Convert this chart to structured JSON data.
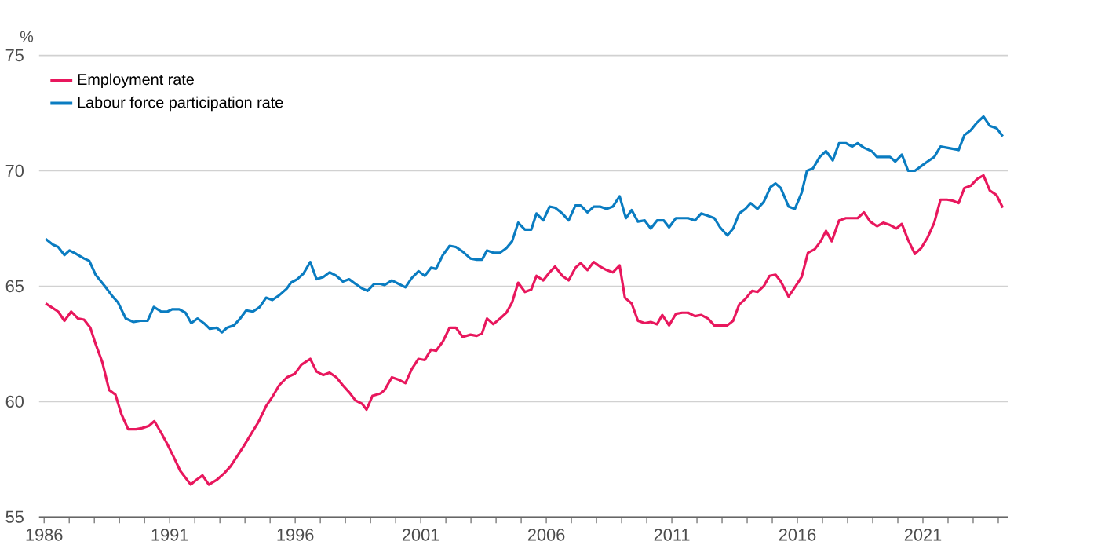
{
  "chart_data": {
    "type": "line",
    "ylabel": "%",
    "xlim": [
      1985.8,
      2024.4
    ],
    "ylim": [
      55,
      75
    ],
    "yticks": [
      55,
      60,
      65,
      70,
      75
    ],
    "xticks": [
      1986,
      {
        "value": 1987,
        "label": null
      },
      {
        "value": 1988,
        "label": null
      },
      {
        "value": 1989,
        "label": null
      },
      {
        "value": 1990,
        "label": null
      },
      1991,
      {
        "value": 1992,
        "label": null
      },
      {
        "value": 1993,
        "label": null
      },
      {
        "value": 1994,
        "label": null
      },
      {
        "value": 1995,
        "label": null
      },
      1996,
      {
        "value": 1997,
        "label": null
      },
      {
        "value": 1998,
        "label": null
      },
      {
        "value": 1999,
        "label": null
      },
      {
        "value": 2000,
        "label": null
      },
      2001,
      {
        "value": 2002,
        "label": null
      },
      {
        "value": 2003,
        "label": null
      },
      {
        "value": 2004,
        "label": null
      },
      {
        "value": 2005,
        "label": null
      },
      2006,
      {
        "value": 2007,
        "label": null
      },
      {
        "value": 2008,
        "label": null
      },
      {
        "value": 2009,
        "label": null
      },
      {
        "value": 2010,
        "label": null
      },
      2011,
      {
        "value": 2012,
        "label": null
      },
      {
        "value": 2013,
        "label": null
      },
      {
        "value": 2014,
        "label": null
      },
      {
        "value": 2015,
        "label": null
      },
      2016,
      {
        "value": 2017,
        "label": null
      },
      {
        "value": 2018,
        "label": null
      },
      {
        "value": 2019,
        "label": null
      },
      {
        "value": 2020,
        "label": null
      },
      2021,
      {
        "value": 2022,
        "label": null
      },
      {
        "value": 2023,
        "label": null
      },
      {
        "value": 2024,
        "label": null
      }
    ],
    "grid": "y",
    "legend": "top left",
    "series": [
      {
        "name": "Employment rate",
        "color": "#e8175d",
        "x": [
          1986.06,
          1986.35,
          1986.56,
          1986.81,
          1987.08,
          1987.35,
          1987.59,
          1987.84,
          1988.05,
          1988.32,
          1988.59,
          1988.84,
          1989.08,
          1989.35,
          1989.66,
          1989.91,
          1990.18,
          1990.39,
          1990.66,
          1990.91,
          1991.16,
          1991.42,
          1991.84,
          1992.05,
          1992.31,
          1992.56,
          1992.87,
          1993.18,
          1993.43,
          1993.7,
          1993.97,
          1994.22,
          1994.53,
          1994.84,
          1995.09,
          1995.36,
          1995.67,
          1995.98,
          1996.25,
          1996.6,
          1996.85,
          1997.12,
          1997.37,
          1997.64,
          1997.9,
          1998.15,
          1998.4,
          1998.67,
          1998.84,
          1999.08,
          1999.4,
          1999.56,
          1999.85,
          2000.12,
          2000.39,
          2000.64,
          2000.91,
          2001.16,
          2001.41,
          2001.61,
          2001.88,
          2002.15,
          2002.4,
          2002.67,
          2002.98,
          2003.23,
          2003.44,
          2003.64,
          2003.89,
          2004.16,
          2004.41,
          2004.64,
          2004.88,
          2005.15,
          2005.4,
          2005.61,
          2005.88,
          2006.13,
          2006.35,
          2006.64,
          2006.89,
          2007.16,
          2007.37,
          2007.64,
          2007.89,
          2008.14,
          2008.4,
          2008.65,
          2008.92,
          2009.13,
          2009.4,
          2009.65,
          2009.92,
          2010.16,
          2010.41,
          2010.62,
          2010.89,
          2011.16,
          2011.41,
          2011.65,
          2011.92,
          2012.17,
          2012.44,
          2012.69,
          2012.96,
          2013.21,
          2013.44,
          2013.68,
          2013.93,
          2014.2,
          2014.41,
          2014.66,
          2014.89,
          2015.13,
          2015.34,
          2015.65,
          2015.9,
          2016.17,
          2016.42,
          2016.69,
          2016.93,
          2017.14,
          2017.37,
          2017.66,
          2017.93,
          2018.18,
          2018.4,
          2018.65,
          2018.9,
          2019.17,
          2019.42,
          2019.69,
          2019.94,
          2020.16,
          2020.41,
          2020.68,
          2020.93,
          2021.18,
          2021.45,
          2021.7,
          2021.96,
          2022.21,
          2022.42,
          2022.65,
          2022.9,
          2023.16,
          2023.41,
          2023.66,
          2023.93,
          2024.18
        ],
        "values": [
          64.25,
          64.05,
          63.9,
          63.5,
          63.9,
          63.6,
          63.55,
          63.2,
          62.5,
          61.7,
          60.5,
          60.3,
          59.45,
          58.8,
          58.8,
          58.85,
          58.95,
          59.15,
          58.65,
          58.15,
          57.6,
          57.0,
          56.4,
          56.6,
          56.8,
          56.4,
          56.6,
          56.9,
          57.2,
          57.65,
          58.1,
          58.55,
          59.1,
          59.8,
          60.2,
          60.7,
          61.05,
          61.2,
          61.6,
          61.85,
          61.3,
          61.15,
          61.25,
          61.05,
          60.7,
          60.4,
          60.05,
          59.9,
          59.65,
          60.25,
          60.35,
          60.5,
          61.05,
          60.95,
          60.8,
          61.4,
          61.85,
          61.8,
          62.25,
          62.2,
          62.6,
          63.2,
          63.2,
          62.8,
          62.9,
          62.85,
          62.95,
          63.6,
          63.35,
          63.6,
          63.85,
          64.3,
          65.15,
          64.75,
          64.85,
          65.45,
          65.25,
          65.6,
          65.85,
          65.45,
          65.25,
          65.8,
          66.0,
          65.7,
          66.05,
          65.85,
          65.7,
          65.6,
          65.9,
          64.5,
          64.25,
          63.5,
          63.4,
          63.45,
          63.35,
          63.75,
          63.3,
          63.8,
          63.85,
          63.85,
          63.7,
          63.75,
          63.6,
          63.3,
          63.3,
          63.3,
          63.5,
          64.2,
          64.45,
          64.8,
          64.75,
          65.0,
          65.45,
          65.5,
          65.2,
          64.55,
          64.95,
          65.4,
          66.45,
          66.6,
          66.95,
          67.4,
          66.95,
          67.85,
          67.95,
          67.95,
          67.95,
          68.2,
          67.8,
          67.6,
          67.75,
          67.65,
          67.5,
          67.7,
          67.0,
          66.4,
          66.65,
          67.1,
          67.75,
          68.75,
          68.75,
          68.7,
          68.6,
          69.25,
          69.35,
          69.65,
          69.8,
          69.15,
          68.95,
          68.4
        ]
      },
      {
        "name": "Labour force participation rate",
        "color": "#0a7cc1",
        "x": [
          1986.06,
          1986.35,
          1986.56,
          1986.81,
          1987.01,
          1987.28,
          1987.59,
          1987.8,
          1988.05,
          1988.42,
          1988.73,
          1988.94,
          1989.25,
          1989.56,
          1989.83,
          1990.12,
          1990.37,
          1990.66,
          1990.91,
          1991.11,
          1991.38,
          1991.63,
          1991.86,
          1992.11,
          1992.36,
          1992.6,
          1992.87,
          1993.08,
          1993.29,
          1993.56,
          1993.81,
          1994.05,
          1994.32,
          1994.59,
          1994.84,
          1995.09,
          1995.36,
          1995.67,
          1995.83,
          1996.08,
          1996.33,
          1996.6,
          1996.85,
          1997.12,
          1997.37,
          1997.64,
          1997.9,
          1998.15,
          1998.4,
          1998.67,
          1998.88,
          1999.15,
          1999.4,
          1999.56,
          1999.85,
          2000.12,
          2000.39,
          2000.64,
          2000.91,
          2001.16,
          2001.41,
          2001.61,
          2001.88,
          2002.15,
          2002.4,
          2002.67,
          2002.98,
          2003.23,
          2003.44,
          2003.64,
          2003.89,
          2004.16,
          2004.41,
          2004.64,
          2004.88,
          2005.15,
          2005.4,
          2005.61,
          2005.88,
          2006.13,
          2006.35,
          2006.64,
          2006.89,
          2007.16,
          2007.37,
          2007.64,
          2007.89,
          2008.14,
          2008.4,
          2008.65,
          2008.92,
          2009.17,
          2009.4,
          2009.65,
          2009.92,
          2010.16,
          2010.41,
          2010.68,
          2010.89,
          2011.16,
          2011.41,
          2011.65,
          2011.92,
          2012.17,
          2012.44,
          2012.69,
          2012.92,
          2013.21,
          2013.44,
          2013.68,
          2013.93,
          2014.14,
          2014.41,
          2014.66,
          2014.93,
          2015.13,
          2015.34,
          2015.65,
          2015.9,
          2016.17,
          2016.38,
          2016.62,
          2016.89,
          2017.14,
          2017.41,
          2017.66,
          2017.93,
          2018.18,
          2018.4,
          2018.65,
          2018.96,
          2019.17,
          2019.48,
          2019.69,
          2019.9,
          2020.16,
          2020.41,
          2020.68,
          2020.93,
          2021.18,
          2021.45,
          2021.7,
          2021.96,
          2022.21,
          2022.42,
          2022.65,
          2022.9,
          2023.16,
          2023.41,
          2023.66,
          2023.93,
          2024.18
        ],
        "values": [
          67.05,
          66.8,
          66.7,
          66.35,
          66.55,
          66.4,
          66.2,
          66.1,
          65.5,
          65.0,
          64.55,
          64.3,
          63.6,
          63.45,
          63.5,
          63.5,
          64.1,
          63.9,
          63.9,
          64.0,
          64.0,
          63.85,
          63.4,
          63.6,
          63.4,
          63.15,
          63.2,
          63.0,
          63.2,
          63.3,
          63.6,
          63.95,
          63.9,
          64.1,
          64.5,
          64.4,
          64.6,
          64.9,
          65.15,
          65.3,
          65.55,
          66.05,
          65.3,
          65.4,
          65.6,
          65.45,
          65.2,
          65.3,
          65.1,
          64.9,
          64.8,
          65.1,
          65.1,
          65.05,
          65.25,
          65.1,
          64.95,
          65.35,
          65.65,
          65.45,
          65.8,
          65.75,
          66.35,
          66.75,
          66.7,
          66.5,
          66.2,
          66.15,
          66.15,
          66.55,
          66.45,
          66.45,
          66.65,
          66.95,
          67.75,
          67.45,
          67.45,
          68.15,
          67.85,
          68.45,
          68.4,
          68.15,
          67.85,
          68.5,
          68.5,
          68.2,
          68.45,
          68.45,
          68.35,
          68.45,
          68.9,
          67.95,
          68.3,
          67.8,
          67.85,
          67.5,
          67.85,
          67.85,
          67.55,
          67.95,
          67.95,
          67.95,
          67.85,
          68.15,
          68.05,
          67.95,
          67.55,
          67.2,
          67.5,
          68.15,
          68.35,
          68.6,
          68.35,
          68.65,
          69.3,
          69.45,
          69.25,
          68.45,
          68.35,
          69.05,
          70.0,
          70.1,
          70.6,
          70.85,
          70.45,
          71.2,
          71.2,
          71.05,
          71.2,
          71.0,
          70.85,
          70.6,
          70.6,
          70.6,
          70.4,
          70.7,
          70.0,
          70.0,
          70.2,
          70.4,
          70.6,
          71.05,
          71.0,
          70.95,
          70.9,
          71.55,
          71.75,
          72.1,
          72.35,
          71.95,
          71.85,
          71.5
        ]
      }
    ]
  }
}
